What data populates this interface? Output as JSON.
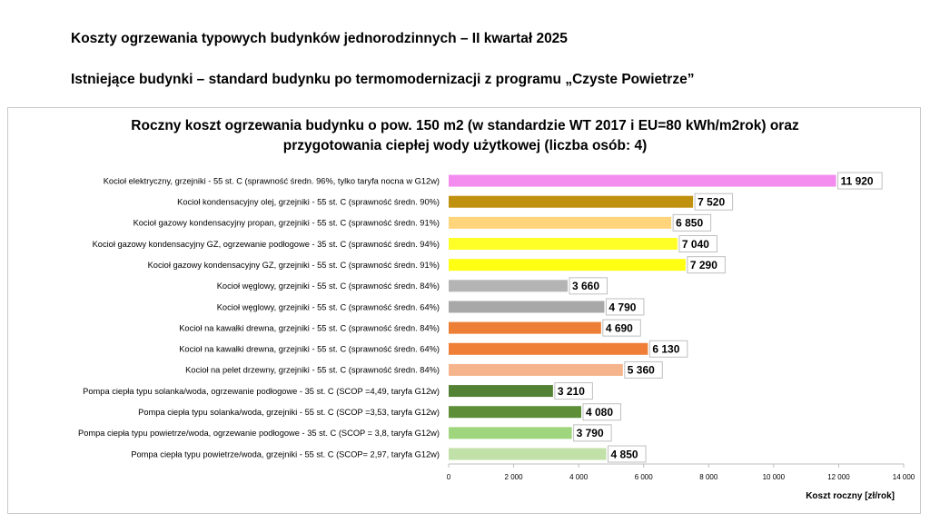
{
  "page": {
    "title": "Koszty ogrzewania typowych budynków jednorodzinnych – II kwartał 2025",
    "subtitle": "Istniejące budynki – standard budynku po termomodernizacji z programu „Czyste Powietrze”"
  },
  "chart_data": {
    "type": "bar",
    "orientation": "horizontal",
    "title_line1": "Roczny koszt ogrzewania budynku o pow. 150 m2 (w standardzie WT 2017 i EU=80 kWh/m2rok) oraz",
    "title_line2": "przygotowania ciepłej wody użytkowej (liczba osób: 4)",
    "xlabel": "Koszt roczny [zł/rok]",
    "ylabel": "",
    "xlim": [
      0,
      14000
    ],
    "ticks": [
      0,
      2000,
      4000,
      6000,
      8000,
      10000,
      12000,
      14000
    ],
    "tick_labels": [
      "0",
      "2 000",
      "4 000",
      "6 000",
      "8 000",
      "10 000",
      "12 000",
      "14 000"
    ],
    "grid": false,
    "legend": "none",
    "categories": [
      "Kocioł  elektryczny,  grzejniki - 55 st. C  (sprawność średn. 96%, tylko taryfa nocna w G12w)",
      "Kocioł  kondensacyjny olej,  grzejniki - 55 st. C (sprawność średn. 90%)",
      "Kocioł gazowy kondensacyjny propan, grzejniki - 55 st. C (sprawność średn. 91%)",
      "Kocioł gazowy kondensacyjny GZ, ogrzewanie podłogowe - 35 st. C (sprawność średn. 94%)",
      "Kocioł gazowy kondensacyjny GZ, grzejniki - 55 st. C (sprawność średn. 91%)",
      "Kocioł węglowy,  grzejniki - 55 st. C (sprawność średn. 84%)",
      "Kocioł węglowy,  grzejniki - 55 st. C (sprawność średn. 64%)",
      "Kocioł na kawałki drewna, grzejniki - 55 st. C (sprawność średn. 84%)",
      "Kocioł na kawałki drewna, grzejniki - 55 st. C (sprawność średn. 64%)",
      "Kocioł na pelet drzewny, grzejniki - 55 st. C (sprawność średn. 84%)",
      "Pompa ciepła typu solanka/woda, ogrzewanie podłogowe - 35 st. C (SCOP =4,49, taryfa G12w)",
      "Pompa ciepła typu solanka/woda, grzejniki - 55 st. C (SCOP =3,53, taryfa G12w)",
      "Pompa ciepła typu powietrze/woda, ogrzewanie podłogowe - 35 st. C (SCOP = 3,8, taryfa G12w)",
      "Pompa ciepła typu powietrze/woda, grzejniki - 55 st. C (SCOP= 2,97, taryfa G12w)"
    ],
    "values": [
      11920,
      7520,
      6850,
      7040,
      7290,
      3660,
      4790,
      4690,
      6130,
      5360,
      3210,
      4080,
      3790,
      4850
    ],
    "value_labels": [
      "11 920",
      "7 520",
      "6 850",
      "7 040",
      "7 290",
      "3 660",
      "4 790",
      "4 690",
      "6 130",
      "5 360",
      "3 210",
      "4 080",
      "3 790",
      "4 850"
    ],
    "colors": [
      "#f48cf0",
      "#c0910f",
      "#ffd47a",
      "#ffff28",
      "#ffff14",
      "#b4b4b4",
      "#a8a8a8",
      "#ec7e35",
      "#ef7e36",
      "#f5b48b",
      "#548235",
      "#5e8f38",
      "#9fd57d",
      "#c2e1a8"
    ]
  }
}
